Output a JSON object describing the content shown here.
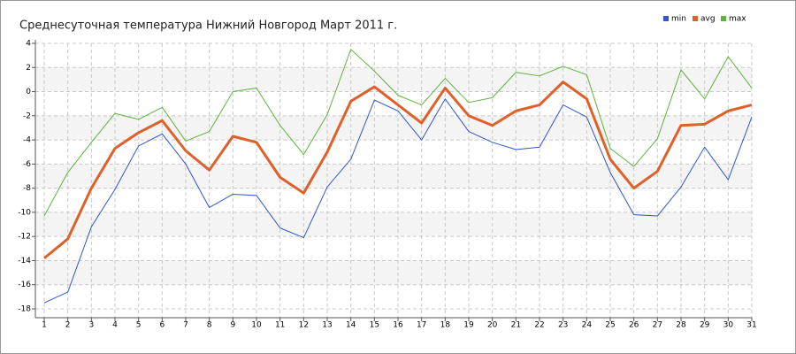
{
  "chart_data": {
    "type": "line",
    "title": "Среднесуточная температура Нижний Новгород  Март 2011 г.",
    "x": [
      1,
      2,
      3,
      4,
      5,
      6,
      7,
      8,
      9,
      10,
      11,
      12,
      13,
      14,
      15,
      16,
      17,
      18,
      19,
      20,
      21,
      22,
      23,
      24,
      25,
      26,
      27,
      28,
      29,
      30,
      31
    ],
    "xlim": [
      1,
      31
    ],
    "xticks": [
      1,
      2,
      3,
      4,
      5,
      6,
      7,
      8,
      9,
      10,
      11,
      12,
      13,
      14,
      15,
      16,
      17,
      18,
      19,
      20,
      21,
      22,
      23,
      24,
      25,
      26,
      27,
      28,
      29,
      30,
      31
    ],
    "ylim": [
      -18,
      4
    ],
    "yticks": [
      -18,
      -16,
      -14,
      -12,
      -10,
      -8,
      -6,
      -4,
      -2,
      0,
      2,
      4
    ],
    "grid": true,
    "legend": "top-right",
    "series": [
      {
        "name": "min",
        "color": "#3056d0",
        "width": 1,
        "values": [
          -17.5,
          -16.6,
          -11.2,
          -8.1,
          -4.5,
          -3.5,
          -6.0,
          -9.6,
          -8.5,
          -8.6,
          -11.3,
          -12.1,
          -7.9,
          -5.6,
          -0.7,
          -1.6,
          -4.0,
          -0.6,
          -3.3,
          -4.2,
          -4.8,
          -4.6,
          -1.1,
          -2.1,
          -6.7,
          -10.2,
          -10.3,
          -7.9,
          -4.6,
          -7.3,
          -2.1
        ]
      },
      {
        "name": "avg",
        "color": "#e0602a",
        "width": 3,
        "values": [
          -13.8,
          -12.2,
          -8.0,
          -4.7,
          -3.4,
          -2.4,
          -4.9,
          -6.5,
          -3.7,
          -4.2,
          -7.1,
          -8.4,
          -5.0,
          -0.8,
          0.4,
          -1.1,
          -2.6,
          0.3,
          -2.0,
          -2.8,
          -1.6,
          -1.1,
          0.8,
          -0.6,
          -5.6,
          -8.0,
          -6.6,
          -2.8,
          -2.7,
          -1.6,
          -1.1
        ]
      },
      {
        "name": "max",
        "color": "#5ab53a",
        "width": 1,
        "values": [
          -10.3,
          -6.7,
          -4.2,
          -1.8,
          -2.3,
          -1.3,
          -4.1,
          -3.3,
          0.0,
          0.3,
          -2.8,
          -5.2,
          -1.9,
          3.5,
          1.7,
          -0.3,
          -1.1,
          1.1,
          -0.9,
          -0.5,
          1.6,
          1.3,
          2.1,
          1.4,
          -4.7,
          -6.2,
          -3.9,
          1.8,
          -0.6,
          2.9,
          0.3
        ]
      }
    ]
  }
}
